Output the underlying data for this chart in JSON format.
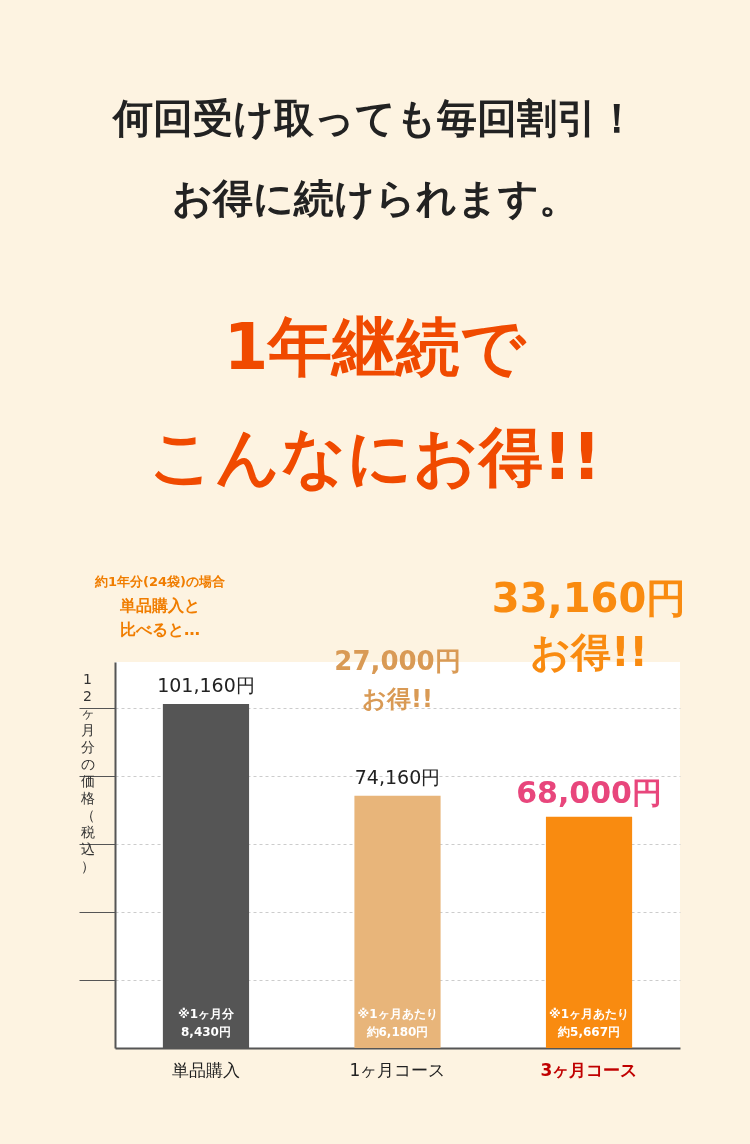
{
  "chart_data": {
    "type": "bar",
    "title": "何回受け取っても毎回割引！お得に続けられます。",
    "subtitle": "1年継続でこんなにお得!!",
    "ylabel": "12ヶ月分の価格（税込）",
    "categories": [
      "単品購入",
      "1ヶ月コース",
      "3ヶ月コース"
    ],
    "values": [
      101160,
      74160,
      68000
    ],
    "colors": [
      "#555555",
      "#e8b57a",
      "#f98b10"
    ],
    "value_labels": [
      "101,160円",
      "74,160円",
      "68,000円"
    ],
    "ylim": [
      0,
      113500
    ],
    "yticks": [
      {
        "value": 20000,
        "label": null
      },
      {
        "value": 40000,
        "label": null
      },
      {
        "value": 60000,
        "label": null
      },
      {
        "value": 80000,
        "label": null
      },
      {
        "value": 100000,
        "label": null
      }
    ],
    "tick_labels": "x",
    "grid": "y",
    "annotations": [
      "約1年分(24袋)の場合",
      "単品購入と",
      "比べると…",
      "27,000円",
      "お得!!",
      "33,160円",
      "お得!!",
      "※1ヶ月分",
      "8,430円",
      "※1ヶ月あたり",
      "約6,180円",
      "※1ヶ月あたり",
      "約5,667円"
    ]
  }
}
